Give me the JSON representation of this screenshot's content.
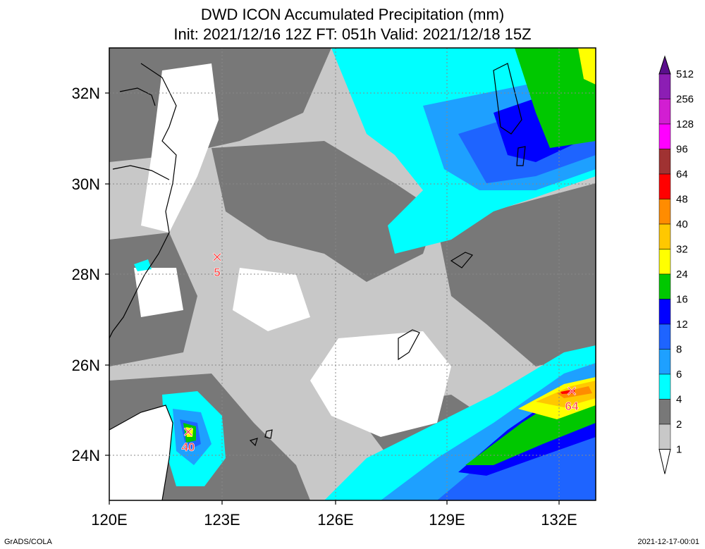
{
  "title": {
    "line1": "DWD ICON Accumulated Precipitation (mm)",
    "line2": "Init: 2021/12/16 12Z  FT: 051h  Valid: 2021/12/18 15Z"
  },
  "map": {
    "lon_range": [
      120,
      133
    ],
    "lat_range": [
      23,
      33
    ],
    "x_ticks": [
      "120E",
      "123E",
      "126E",
      "129E",
      "132E"
    ],
    "x_tick_values": [
      120,
      123,
      126,
      129,
      132
    ],
    "y_ticks": [
      "32N",
      "30N",
      "28N",
      "26N",
      "24N"
    ],
    "y_tick_values": [
      32,
      30,
      28,
      26,
      24
    ],
    "grid": "dotted"
  },
  "markers": [
    {
      "label": "5",
      "lon": 122.8,
      "lat": 28.4
    },
    {
      "label": "40",
      "lon": 122.0,
      "lat": 24.5
    },
    {
      "label": "64",
      "lon": 132.4,
      "lat": 25.4
    }
  ],
  "colorbar": {
    "levels": [
      "512",
      "256",
      "128",
      "96",
      "64",
      "48",
      "40",
      "32",
      "24",
      "16",
      "12",
      "8",
      "6",
      "4",
      "2",
      "1"
    ],
    "colors": [
      "#5a0f8c",
      "#8c1eb4",
      "#d21ed2",
      "#ff00ff",
      "#a03232",
      "#ff0000",
      "#ff8c00",
      "#ffc800",
      "#ffff00",
      "#00c800",
      "#0000ff",
      "#1e64ff",
      "#1ea0ff",
      "#00ffff",
      "#787878",
      "#c8c8c8",
      "#ffffff"
    ]
  },
  "footer": {
    "credit": "GrADS/COLA",
    "timestamp": "2021-12-17-00:01"
  }
}
